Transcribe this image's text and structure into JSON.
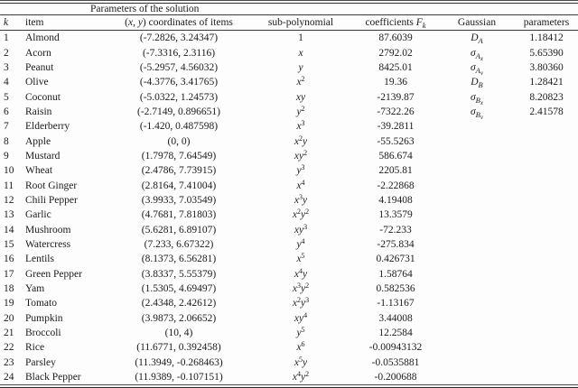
{
  "table": {
    "caption": "Parameters of the solution",
    "columns": [
      "*k*",
      "item",
      "(*x*, *y*) coordinates of items",
      "sub-polynomial",
      "coefficients *F*_*k*",
      "Gaussian",
      "parameters"
    ],
    "rows": [
      {
        "k": "1",
        "item": "Almond",
        "coords": "(-7.2826, 3.24347)",
        "poly": "1",
        "coeff": "87.6039",
        "gauss": "D_A",
        "param": "1.18412"
      },
      {
        "k": "2",
        "item": "Acorn",
        "coords": "(-7.3316, 2.3116)",
        "poly": "x",
        "coeff": "2792.02",
        "gauss": "σ_A_x",
        "param": "5.65390"
      },
      {
        "k": "3",
        "item": "Peanut",
        "coords": "(-5.2957, 4.56032)",
        "poly": "y",
        "coeff": "8425.01",
        "gauss": "σ_A_y",
        "param": "3.80360"
      },
      {
        "k": "4",
        "item": "Olive",
        "coords": "(-4.3776, 3.41765)",
        "poly": "x^2",
        "coeff": "19.36",
        "gauss": "D_B",
        "param": "1.28421"
      },
      {
        "k": "5",
        "item": "Coconut",
        "coords": "(-5.0322, 1.24573)",
        "poly": "xy",
        "coeff": "-2139.87",
        "gauss": "σ_B_x",
        "param": "8.20823"
      },
      {
        "k": "6",
        "item": "Raisin",
        "coords": "(-2.7149, 0.896651)",
        "poly": "y^2",
        "coeff": "-7322.26",
        "gauss": "σ_B_y",
        "param": "2.41578"
      },
      {
        "k": "7",
        "item": "Elderberry",
        "coords": "(-1.420, 0.487598)",
        "poly": "x^3",
        "coeff": "-39.2811",
        "gauss": "",
        "param": ""
      },
      {
        "k": "8",
        "item": "Apple",
        "coords": "(0, 0)",
        "poly": "x^2y",
        "coeff": "-55.5263",
        "gauss": "",
        "param": ""
      },
      {
        "k": "9",
        "item": "Mustard",
        "coords": "(1.7978, 7.64549)",
        "poly": "xy^2",
        "coeff": "586.674",
        "gauss": "",
        "param": ""
      },
      {
        "k": "10",
        "item": "Wheat",
        "coords": "(2.4786, 7.73915)",
        "poly": "y^3",
        "coeff": "2205.81",
        "gauss": "",
        "param": ""
      },
      {
        "k": "11",
        "item": "Root Ginger",
        "coords": "(2.8164, 7.41004)",
        "poly": "x^4",
        "coeff": "-2.22868",
        "gauss": "",
        "param": ""
      },
      {
        "k": "12",
        "item": "Chili Pepper",
        "coords": "(3.9933, 7.03549)",
        "poly": "x^3y",
        "coeff": "4.19408",
        "gauss": "",
        "param": ""
      },
      {
        "k": "13",
        "item": "Garlic",
        "coords": "(4.7681, 7.81803)",
        "poly": "x^2y^2",
        "coeff": "13.3579",
        "gauss": "",
        "param": ""
      },
      {
        "k": "14",
        "item": "Mushroom",
        "coords": "(5.6281, 6.89107)",
        "poly": "xy^3",
        "coeff": "-72.233",
        "gauss": "",
        "param": ""
      },
      {
        "k": "15",
        "item": "Watercress",
        "coords": "(7.233, 6.67322)",
        "poly": "y^4",
        "coeff": "-275.834",
        "gauss": "",
        "param": ""
      },
      {
        "k": "16",
        "item": "Lentils",
        "coords": "(8.1373, 6.56281)",
        "poly": "x^5",
        "coeff": "0.426731",
        "gauss": "",
        "param": ""
      },
      {
        "k": "17",
        "item": "Green Pepper",
        "coords": "(3.8337, 5.55379)",
        "poly": "x^4y",
        "coeff": "1.58764",
        "gauss": "",
        "param": ""
      },
      {
        "k": "18",
        "item": "Yam",
        "coords": "(1.5305, 4.69497)",
        "poly": "x^3y^2",
        "coeff": "0.582536",
        "gauss": "",
        "param": ""
      },
      {
        "k": "19",
        "item": "Tomato",
        "coords": "(2.4348, 2.42612)",
        "poly": "x^2y^3",
        "coeff": "-1.13167",
        "gauss": "",
        "param": ""
      },
      {
        "k": "20",
        "item": "Pumpkin",
        "coords": "(3.9873, 2.06652)",
        "poly": "xy^4",
        "coeff": "3.44008",
        "gauss": "",
        "param": ""
      },
      {
        "k": "21",
        "item": "Broccoli",
        "coords": "(10, 4)",
        "poly": "y^5",
        "coeff": "12.2584",
        "gauss": "",
        "param": ""
      },
      {
        "k": "22",
        "item": "Rice",
        "coords": "(11.6771, 0.392458)",
        "poly": "x^6",
        "coeff": "-0.00943132",
        "gauss": "",
        "param": ""
      },
      {
        "k": "23",
        "item": "Parsley",
        "coords": "(11.3949, -0.268463)",
        "poly": "x^5y",
        "coeff": "-0.0535881",
        "gauss": "",
        "param": ""
      },
      {
        "k": "24",
        "item": "Black Pepper",
        "coords": "(11.9389, -0.107151)",
        "poly": "x^4y^2",
        "coeff": "-0.200688",
        "gauss": "",
        "param": ""
      }
    ]
  }
}
